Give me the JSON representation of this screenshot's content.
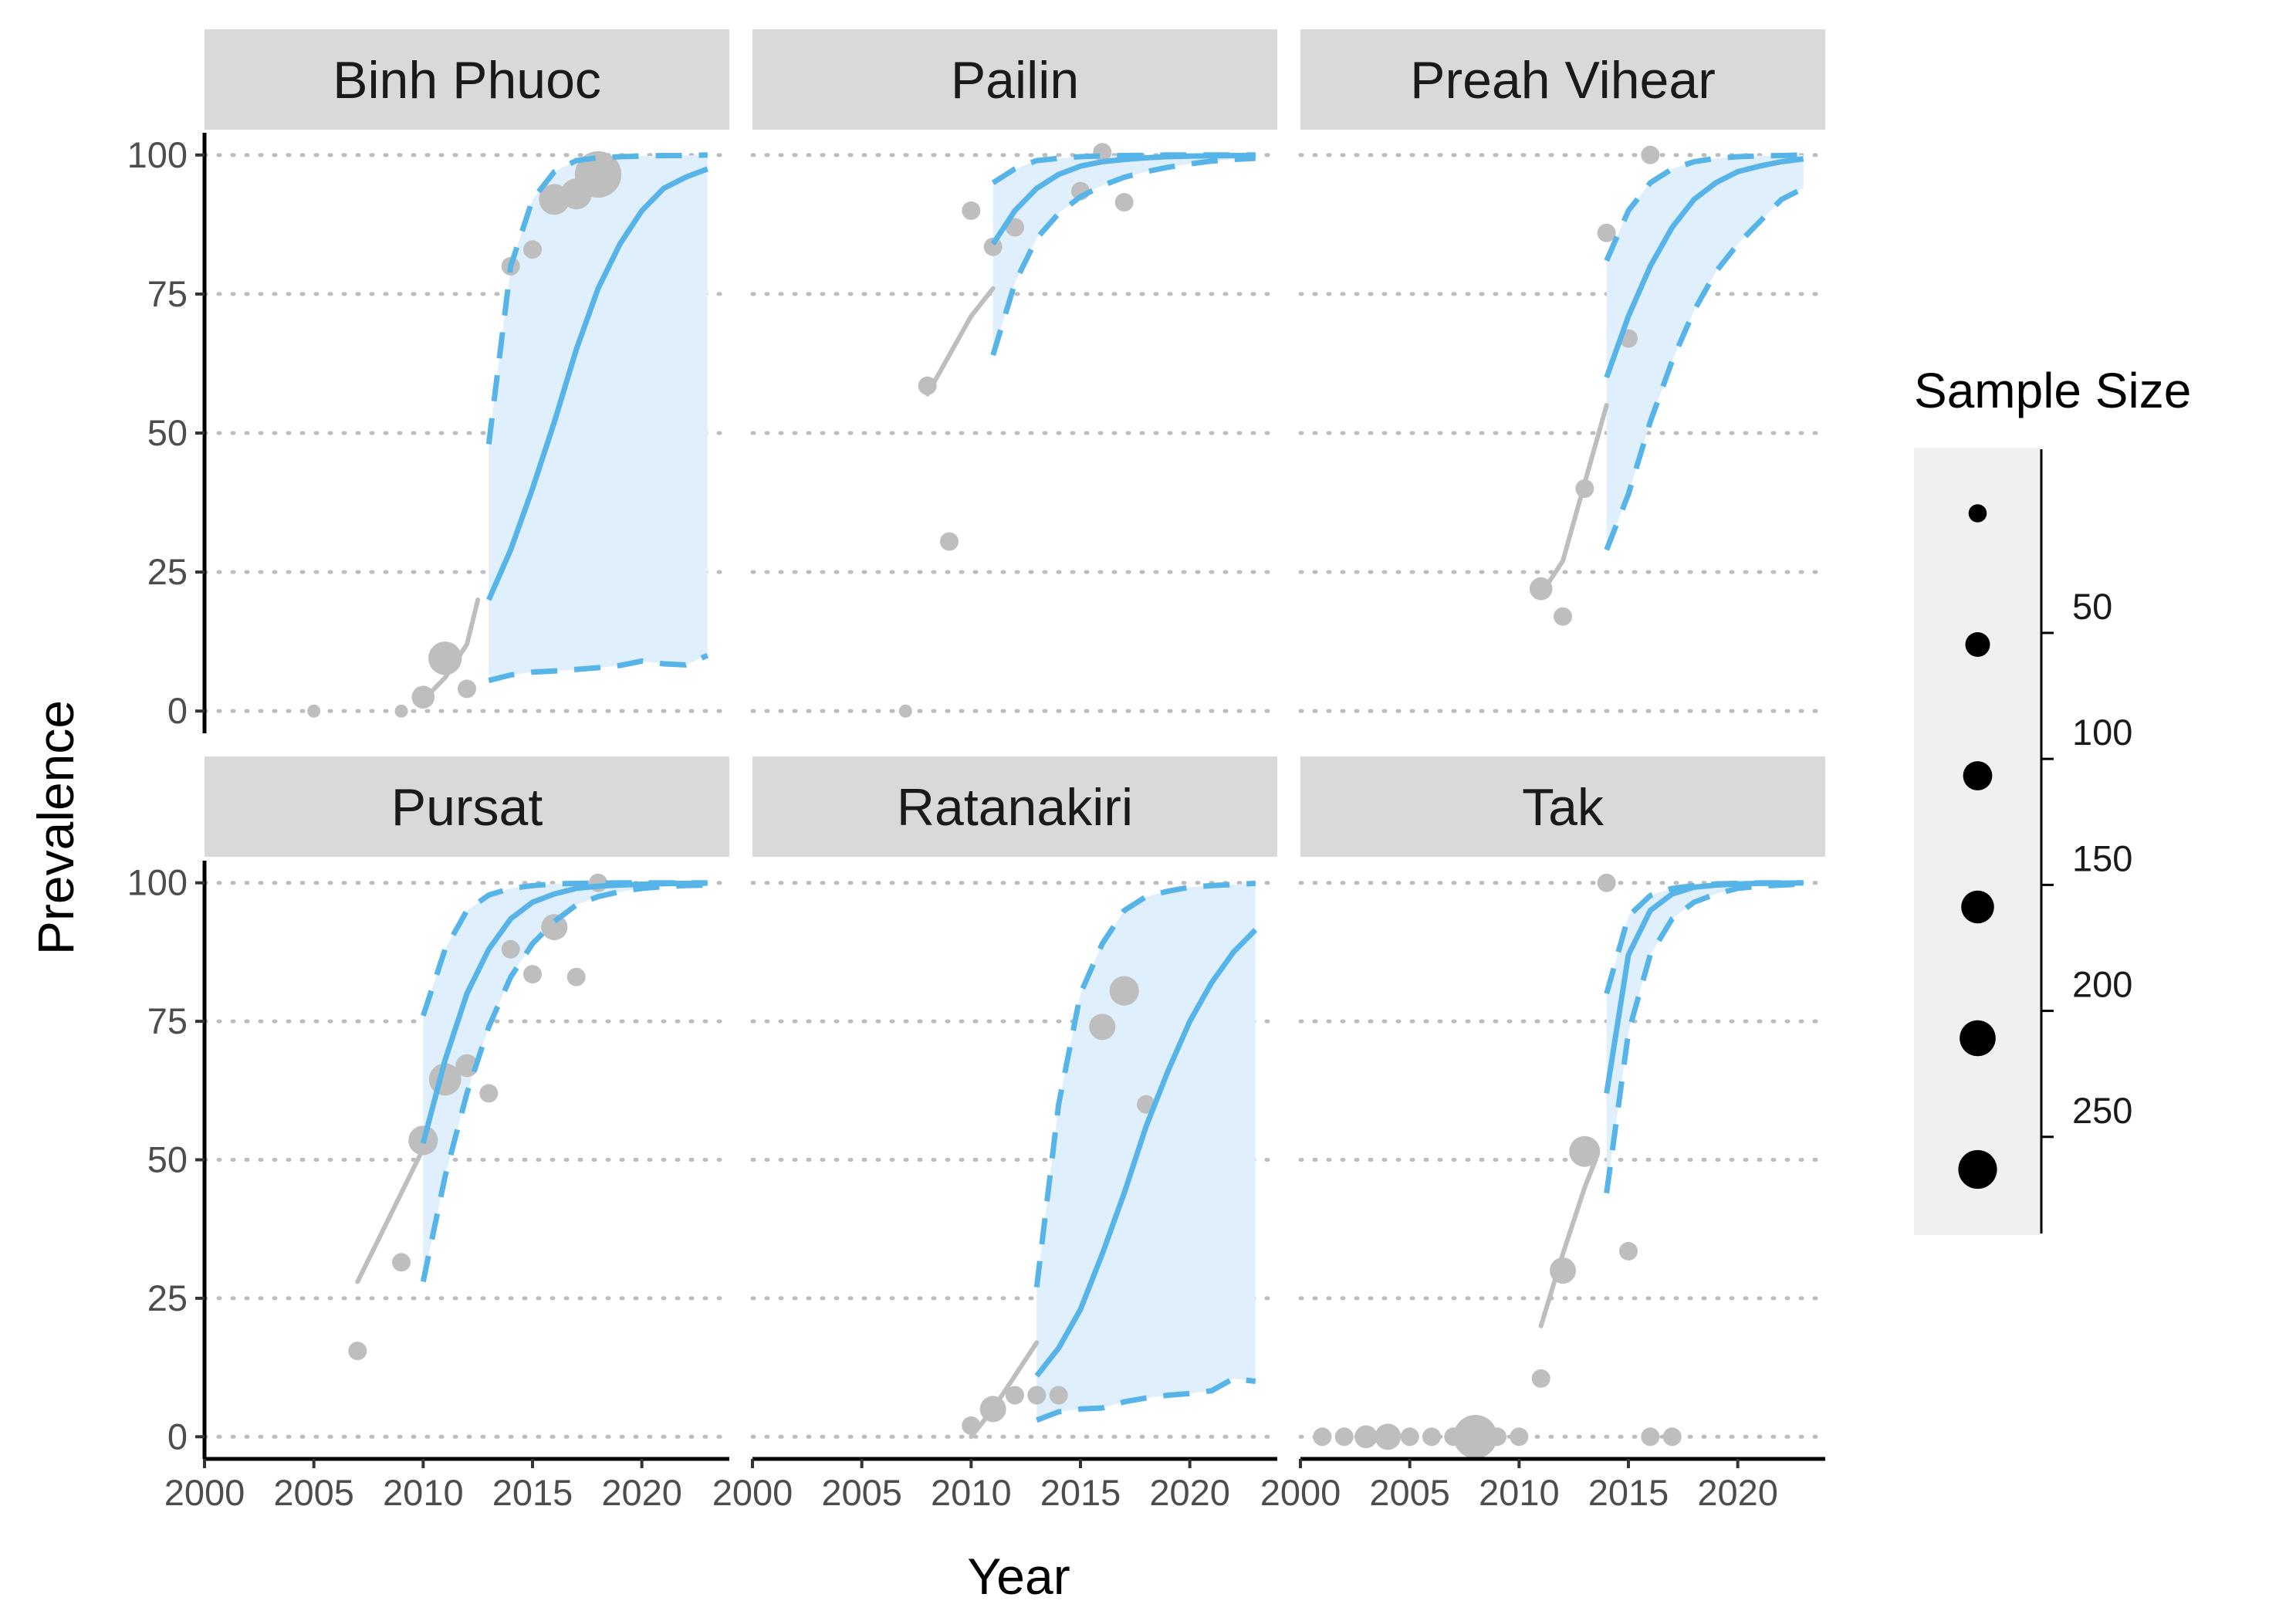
{
  "chart_data": {
    "type": "line",
    "layout": "facet-grid 2x3, shared axes",
    "xlabel": "Year",
    "ylabel": "Prevalence",
    "xlim": [
      2000,
      2024
    ],
    "ylim": [
      -4,
      104
    ],
    "x_ticks": [
      2000,
      2005,
      2010,
      2015,
      2020
    ],
    "y_ticks": [
      0,
      25,
      50,
      75,
      100
    ],
    "grid": "horizontal dotted gridlines at y ticks",
    "colors": {
      "observed": "#bebebe",
      "fit_line": "#56b4e9",
      "ribbon": "#dfeffb",
      "strip": "#d9d9d9",
      "legend_bg": "#f0f0f0"
    },
    "legend": {
      "title": "Sample Size",
      "placement": "right",
      "scale_ticks": [
        50,
        100,
        150,
        200,
        250
      ],
      "scale_range": [
        1,
        300
      ],
      "key_sizes": [
        25,
        75,
        125,
        175,
        225,
        275
      ]
    },
    "facets": [
      {
        "name": "Binh Phuoc",
        "points": [
          [
            2005,
            0,
            20
          ],
          [
            2009,
            0,
            20
          ],
          [
            2010,
            2.5,
            60
          ],
          [
            2011,
            9.5,
            130
          ],
          [
            2012,
            4,
            40
          ],
          [
            2014,
            80,
            40
          ],
          [
            2015,
            83,
            40
          ],
          [
            2016,
            92,
            110
          ],
          [
            2017,
            93,
            110
          ],
          [
            2018,
            96.5,
            250
          ]
        ],
        "obs_trend": [
          [
            2010,
            2
          ],
          [
            2011,
            6
          ],
          [
            2012,
            12
          ],
          [
            2012.5,
            20
          ]
        ],
        "fit_years": [
          2013,
          2014,
          2015,
          2016,
          2017,
          2018,
          2019,
          2020,
          2021,
          2022,
          2023
        ],
        "fit": [
          20,
          29,
          40,
          52,
          65,
          76,
          84,
          90,
          94,
          96,
          97.5
        ],
        "lower": [
          5.5,
          6.5,
          7,
          7.2,
          7.5,
          7.8,
          8.2,
          9,
          8.5,
          8.3,
          10
        ],
        "upper": [
          48,
          80,
          92,
          97,
          99,
          99.5,
          99.7,
          99.8,
          99.9,
          99.9,
          100
        ]
      },
      {
        "name": "Pailin",
        "points": [
          [
            2007,
            0,
            20
          ],
          [
            2008,
            58.5,
            40
          ],
          [
            2009,
            30.5,
            40
          ],
          [
            2010,
            90,
            40
          ],
          [
            2011,
            83.5,
            40
          ],
          [
            2012,
            87,
            40
          ],
          [
            2015,
            93.5,
            40
          ],
          [
            2016,
            100.5,
            40
          ],
          [
            2017,
            91.5,
            40
          ]
        ],
        "obs_trend": [
          [
            2008,
            57
          ],
          [
            2009,
            64
          ],
          [
            2010,
            71
          ],
          [
            2011,
            76
          ]
        ],
        "fit_years": [
          2011,
          2012,
          2013,
          2014,
          2015,
          2016,
          2017,
          2018,
          2019,
          2020,
          2021,
          2022,
          2023
        ],
        "fit": [
          84,
          90,
          94,
          96.5,
          98,
          98.8,
          99.2,
          99.5,
          99.7,
          99.8,
          99.85,
          99.9,
          99.95
        ],
        "lower": [
          64,
          77,
          85,
          89.5,
          92.5,
          94.5,
          96,
          97,
          97.8,
          98.4,
          98.9,
          99.2,
          99.4
        ],
        "upper": [
          95,
          97.5,
          99,
          99.4,
          99.7,
          99.85,
          99.9,
          99.95,
          100,
          100,
          100,
          100,
          100
        ]
      },
      {
        "name": "Preah Vihear",
        "points": [
          [
            2011,
            22,
            60
          ],
          [
            2012,
            17,
            40
          ],
          [
            2013,
            40,
            40
          ],
          [
            2014,
            86,
            40
          ],
          [
            2015,
            67,
            40
          ],
          [
            2016,
            100,
            40
          ]
        ],
        "obs_trend": [
          [
            2011,
            21
          ],
          [
            2012,
            27
          ],
          [
            2013,
            41
          ],
          [
            2014,
            55
          ]
        ],
        "fit_years": [
          2014,
          2015,
          2016,
          2017,
          2018,
          2019,
          2020,
          2021,
          2022,
          2023
        ],
        "fit": [
          60,
          71,
          80,
          87,
          92,
          95,
          97,
          98,
          98.8,
          99.3
        ],
        "lower": [
          29,
          39,
          52,
          63,
          72,
          79,
          84,
          88,
          92,
          94
        ],
        "upper": [
          81,
          90,
          95,
          97.5,
          98.8,
          99.4,
          99.7,
          99.85,
          99.9,
          100
        ]
      },
      {
        "name": "Pursat",
        "points": [
          [
            2007,
            15.5,
            40
          ],
          [
            2009,
            31.5,
            40
          ],
          [
            2010,
            53.5,
            100
          ],
          [
            2011,
            64.5,
            120
          ],
          [
            2012,
            67,
            60
          ],
          [
            2013,
            62,
            40
          ],
          [
            2014,
            88,
            40
          ],
          [
            2015,
            83.5,
            40
          ],
          [
            2016,
            92,
            80
          ],
          [
            2017,
            83,
            40
          ],
          [
            2018,
            100,
            40
          ]
        ],
        "obs_trend": [
          [
            2007,
            28
          ],
          [
            2008,
            36
          ],
          [
            2009,
            44
          ],
          [
            2010,
            52
          ]
        ],
        "fit_years": [
          2010,
          2011,
          2012,
          2013,
          2014,
          2015,
          2016,
          2017,
          2018,
          2019,
          2020,
          2021,
          2022,
          2023
        ],
        "fit": [
          53,
          68,
          80,
          88,
          93.5,
          96.5,
          98,
          99,
          99.4,
          99.6,
          99.75,
          99.85,
          99.9,
          99.95
        ],
        "lower": [
          28,
          47,
          62,
          74,
          83,
          89,
          93,
          96,
          97.5,
          98.4,
          99,
          99.3,
          99.5,
          99.6
        ],
        "upper": [
          76,
          88,
          95,
          97.8,
          99,
          99.5,
          99.8,
          99.9,
          99.95,
          100,
          100,
          100,
          100,
          100
        ]
      },
      {
        "name": "Ratanakiri",
        "points": [
          [
            2010,
            2,
            40
          ],
          [
            2011,
            5,
            80
          ],
          [
            2012,
            7.5,
            40
          ],
          [
            2013,
            7.5,
            40
          ],
          [
            2014,
            7.5,
            40
          ],
          [
            2016,
            74,
            80
          ],
          [
            2017,
            80.5,
            100
          ],
          [
            2018,
            60,
            40
          ]
        ],
        "obs_trend": [
          [
            2010,
            0
          ],
          [
            2011,
            5
          ],
          [
            2012,
            11
          ],
          [
            2013,
            17
          ]
        ],
        "fit_years": [
          2013,
          2014,
          2015,
          2016,
          2017,
          2018,
          2019,
          2020,
          2021,
          2022,
          2023
        ],
        "fit": [
          11,
          16,
          23,
          33,
          44,
          56,
          66,
          75,
          82,
          87.5,
          91.5
        ],
        "lower": [
          3,
          4.5,
          5,
          5.2,
          6.3,
          7,
          7.5,
          7.8,
          8.3,
          10.5,
          10
        ],
        "upper": [
          27,
          60,
          80,
          89,
          95,
          97.5,
          98.5,
          99.2,
          99.5,
          99.7,
          99.9
        ]
      },
      {
        "name": "Tak",
        "points": [
          [
            2001,
            0,
            40
          ],
          [
            2002,
            0,
            40
          ],
          [
            2003,
            0,
            60
          ],
          [
            2004,
            0,
            80
          ],
          [
            2005,
            0,
            40
          ],
          [
            2006,
            0,
            40
          ],
          [
            2007,
            0,
            40
          ],
          [
            2008,
            0,
            220
          ],
          [
            2009,
            0,
            40
          ],
          [
            2010,
            0,
            40
          ],
          [
            2011,
            10.5,
            40
          ],
          [
            2012,
            30,
            80
          ],
          [
            2013,
            51.5,
            110
          ],
          [
            2014,
            100,
            40
          ],
          [
            2015,
            33.5,
            40
          ],
          [
            2016,
            0,
            40
          ],
          [
            2017,
            0,
            40
          ]
        ],
        "obs_trend": [
          [
            2011,
            20
          ],
          [
            2012,
            33
          ],
          [
            2013,
            45
          ],
          [
            2013.5,
            50
          ]
        ],
        "fit_years": [
          2014,
          2015,
          2016,
          2017,
          2018,
          2019,
          2020,
          2021,
          2022,
          2023
        ],
        "fit": [
          62,
          87,
          95,
          98,
          99.2,
          99.6,
          99.8,
          99.9,
          99.95,
          100
        ],
        "lower": [
          44,
          73,
          87,
          93.5,
          96.5,
          98,
          99,
          99.4,
          99.6,
          99.8
        ],
        "upper": [
          80,
          94,
          97.7,
          99,
          99.5,
          99.8,
          99.9,
          100,
          100,
          100
        ]
      }
    ]
  }
}
